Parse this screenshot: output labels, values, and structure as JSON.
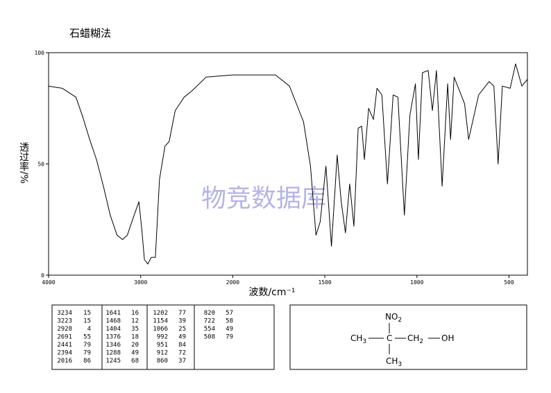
{
  "chart_data": {
    "type": "line",
    "title": "石蜡糊法",
    "xlabel": "波数/cm⁻¹",
    "ylabel": "透过率/%",
    "watermark": "物竞数据库",
    "xlim": [
      4000,
      400
    ],
    "x_break": 2000,
    "xticks": [
      4000,
      3000,
      2000,
      1500,
      1000,
      500
    ],
    "ylim": [
      0,
      100
    ],
    "yticks": [
      0,
      50,
      100
    ],
    "grid": false,
    "series": [
      {
        "name": "spectrum",
        "color": "#000000",
        "x": [
          4000,
          3851,
          3703,
          3628,
          3554,
          3480,
          3405,
          3331,
          3257,
          3197,
          3145,
          3071,
          3019,
          2989,
          2959,
          2922,
          2885,
          2840,
          2796,
          2736,
          2691,
          2625,
          2528,
          2439,
          2290,
          2000,
          1920,
          1768,
          1692,
          1616,
          1578,
          1548,
          1525,
          1494,
          1464,
          1433,
          1411,
          1388,
          1365,
          1342,
          1319,
          1300,
          1285,
          1262,
          1236,
          1217,
          1190,
          1160,
          1129,
          1103,
          1068,
          1038,
          1008,
          992,
          970,
          939,
          916,
          894,
          863,
          833,
          817,
          798,
          741,
          719,
          665,
          608,
          582,
          559,
          536,
          494,
          464,
          430,
          400
        ],
        "values": [
          85,
          84,
          80,
          71,
          61,
          52,
          40,
          27,
          18,
          16,
          18,
          27,
          33,
          21,
          7,
          5,
          8,
          8,
          43,
          58,
          60,
          74,
          80,
          83,
          89,
          90,
          90,
          90,
          85,
          69,
          49,
          18,
          24,
          49,
          13,
          54,
          33,
          19,
          41,
          22,
          66,
          67,
          52,
          75,
          70,
          84,
          81,
          41,
          81,
          80,
          27,
          72,
          86,
          52,
          91,
          92,
          74,
          92,
          40,
          86,
          61,
          89,
          77,
          61,
          81,
          87,
          85,
          50,
          85,
          84,
          95,
          85,
          88
        ]
      }
    ]
  },
  "peak_table": {
    "columns": [
      [
        [
          3234,
          15
        ],
        [
          3223,
          15
        ],
        [
          2928,
          4
        ],
        [
          2691,
          55
        ],
        [
          2441,
          79
        ],
        [
          2394,
          79
        ],
        [
          2016,
          86
        ]
      ],
      [
        [
          1641,
          16
        ],
        [
          1468,
          12
        ],
        [
          1404,
          35
        ],
        [
          1376,
          18
        ],
        [
          1346,
          20
        ],
        [
          1288,
          49
        ],
        [
          1245,
          68
        ]
      ],
      [
        [
          1202,
          77
        ],
        [
          1154,
          39
        ],
        [
          1066,
          25
        ],
        [
          992,
          49
        ],
        [
          951,
          84
        ],
        [
          912,
          72
        ],
        [
          860,
          37
        ]
      ],
      [
        [
          820,
          57
        ],
        [
          722,
          58
        ],
        [
          554,
          49
        ],
        [
          508,
          79
        ]
      ]
    ]
  },
  "structure": {
    "groups": [
      {
        "main": "NO",
        "sub": "2"
      },
      {
        "main": "CH",
        "sub": "3"
      },
      {
        "main": "C"
      },
      {
        "main": "CH",
        "sub": "2"
      },
      {
        "main": "OH"
      },
      {
        "main": "CH",
        "sub": "3"
      }
    ]
  }
}
